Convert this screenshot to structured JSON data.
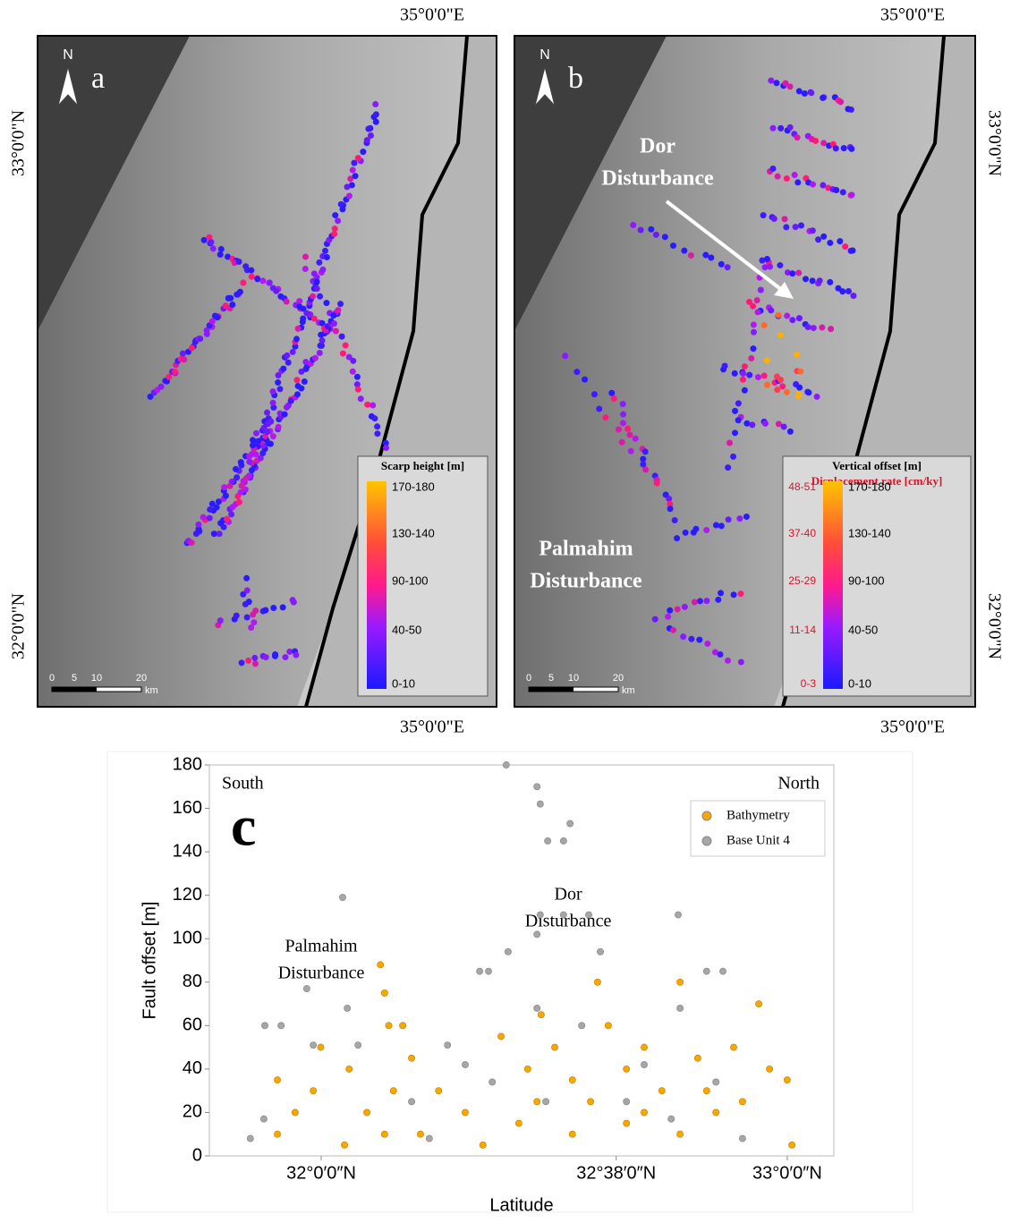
{
  "maps": [
    {
      "panel": "a",
      "north": "N",
      "lon_top": "35°0'0\"E",
      "lon_bottom": "35°0'0\"E",
      "lat_labels": [
        "33°0'0\"N",
        "32°0'0\"N"
      ],
      "legend_title": "Scarp height [m]",
      "legend_labels": [
        "170-180",
        "130-140",
        "90-100",
        "40-50",
        "0-10"
      ],
      "scale_labels": [
        "0",
        "5",
        "10",
        "20",
        "km"
      ]
    },
    {
      "panel": "b",
      "north": "N",
      "lon_top": "35°0'0\"E",
      "lon_bottom": "35°0'0\"E",
      "lat_labels": [
        "33°0'0\"N",
        "32°0'0\"N"
      ],
      "legend_title": "Vertical offset [m]",
      "legend_title_2": "Displacement rate [cm/ky]",
      "legend_labels": [
        "170-180",
        "130-140",
        "90-100",
        "40-50",
        "0-10"
      ],
      "rate_labels": [
        "48-51",
        "37-40",
        "25-29",
        "11-14",
        "0-3"
      ],
      "scale_labels": [
        "0",
        "5",
        "10",
        "20",
        "km"
      ],
      "annotations": [
        {
          "lines": [
            "Dor",
            "Disturbance"
          ]
        },
        {
          "lines": [
            "Palmahim",
            "Disturbance"
          ]
        }
      ]
    }
  ],
  "chart_data": {
    "type": "scatter",
    "panel_label": "c",
    "xlabel": "Latitude",
    "ylabel": "Fault offset [m]",
    "corner_labels": [
      "South",
      "North"
    ],
    "annotations": [
      {
        "lines": [
          "Dor",
          "Disturbance"
        ],
        "x": 32.53,
        "y": 120
      },
      {
        "lines": [
          "Palmahim",
          "Disturbance"
        ],
        "x": 32.0,
        "y": 96
      }
    ],
    "xlim": [
      31.76,
      33.1
    ],
    "ylim": [
      0,
      180
    ],
    "xticks": [
      {
        "value": 32.0,
        "label": "32°0′0″N"
      },
      {
        "value": 32.633,
        "label": "32°38′0″N"
      },
      {
        "value": 33.0,
        "label": "33°0′0″N"
      }
    ],
    "yticks": [
      0,
      20,
      40,
      60,
      80,
      100,
      120,
      140,
      160,
      180
    ],
    "legend": "upper right",
    "series": [
      {
        "name": "Base Unit 4",
        "color": "#a6a6a6",
        "x": [
          32.397,
          32.463,
          32.47,
          32.534,
          32.486,
          32.52,
          32.046,
          32.766,
          32.47,
          32.52,
          32.574,
          32.463,
          32.599,
          32.401,
          31.969,
          32.34,
          32.359,
          32.827,
          32.862,
          32.056,
          31.879,
          31.914,
          32.77,
          31.877,
          31.848,
          32.079,
          31.983,
          32.271,
          32.309,
          32.367,
          32.655,
          32.751,
          32.847,
          32.904,
          32.194,
          32.232,
          32.463,
          32.559,
          32.693,
          32.482
        ],
        "values": [
          180,
          170,
          162,
          153,
          145,
          145,
          119,
          111,
          111,
          111,
          111,
          102,
          94,
          94,
          77,
          85,
          85,
          85,
          85,
          68,
          60,
          60,
          68,
          17,
          8,
          51,
          51,
          51,
          42,
          34,
          25,
          17,
          34,
          8,
          25,
          8,
          68,
          60,
          42,
          25
        ]
      },
      {
        "name": "Bathymetry",
        "color": "#f7a800",
        "x": [
          32.127,
          32.136,
          32.145,
          32.136,
          32.155,
          31.999,
          31.944,
          31.906,
          32.06,
          32.05,
          32.194,
          32.252,
          32.309,
          32.386,
          32.443,
          32.472,
          32.501,
          32.539,
          32.593,
          32.616,
          32.655,
          32.693,
          32.731,
          32.77,
          32.808,
          32.847,
          32.885,
          32.939,
          32.962,
          33.0,
          33.01,
          32.424,
          32.539,
          32.655,
          32.77,
          32.347,
          32.213,
          32.463,
          32.578,
          32.693,
          32.827,
          32.904,
          32.175,
          32.098,
          31.983,
          31.906
        ],
        "values": [
          88,
          75,
          60,
          10,
          30,
          50,
          20,
          10,
          40,
          5,
          45,
          30,
          20,
          55,
          40,
          65,
          50,
          35,
          80,
          60,
          40,
          50,
          30,
          80,
          45,
          20,
          50,
          70,
          40,
          35,
          5,
          15,
          10,
          15,
          10,
          5,
          10,
          25,
          25,
          20,
          30,
          25,
          60,
          20,
          30,
          35
        ]
      }
    ]
  }
}
